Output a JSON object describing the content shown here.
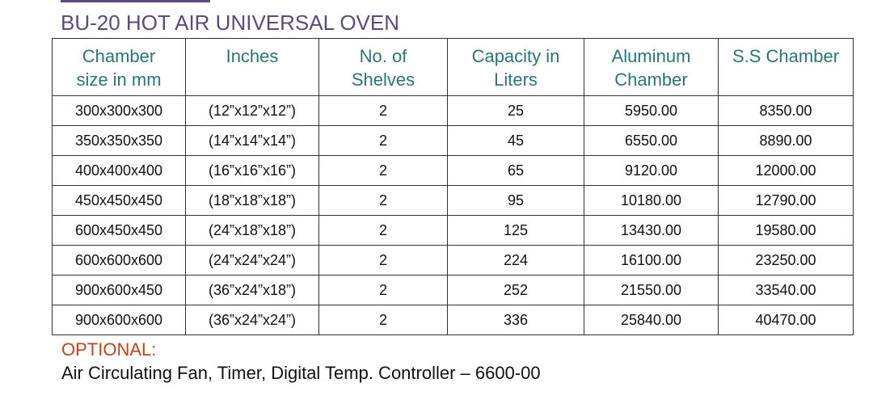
{
  "title": "BU-20 HOT AIR UNIVERSAL OVEN",
  "table": {
    "headers": [
      [
        "Chamber",
        "size in mm"
      ],
      [
        "Inches"
      ],
      [
        "No. of",
        "Shelves"
      ],
      [
        "Capacity in",
        "Liters"
      ],
      [
        "Aluminum",
        "Chamber"
      ],
      [
        "S.S Chamber"
      ]
    ],
    "rows": [
      [
        "300x300x300",
        "(12”x12”x12”)",
        "2",
        "25",
        "5950.00",
        "8350.00"
      ],
      [
        "350x350x350",
        "(14”x14”x14”)",
        "2",
        "45",
        "6550.00",
        "8890.00"
      ],
      [
        "400x400x400",
        "(16”x16”x16”)",
        "2",
        "65",
        "9120.00",
        "12000.00"
      ],
      [
        "450x450x450",
        "(18”x18”x18”)",
        "2",
        "95",
        "10180.00",
        "12790.00"
      ],
      [
        "600x450x450",
        "(24”x18”x18”)",
        "2",
        "125",
        "13430.00",
        "19580.00"
      ],
      [
        "600x600x600",
        "(24”x24”x24”)",
        "2",
        "224",
        "16100.00",
        "23250.00"
      ],
      [
        "900x600x450",
        "(36”x24”x18”)",
        "2",
        "252",
        "21550.00",
        "33540.00"
      ],
      [
        "900x600x600",
        "(36”x24”x24”)",
        "2",
        "336",
        "25840.00",
        "40470.00"
      ]
    ]
  },
  "optional": {
    "label": "OPTIONAL:",
    "text": "Air Circulating Fan, Timer, Digital Temp. Controller – 6600-00"
  }
}
